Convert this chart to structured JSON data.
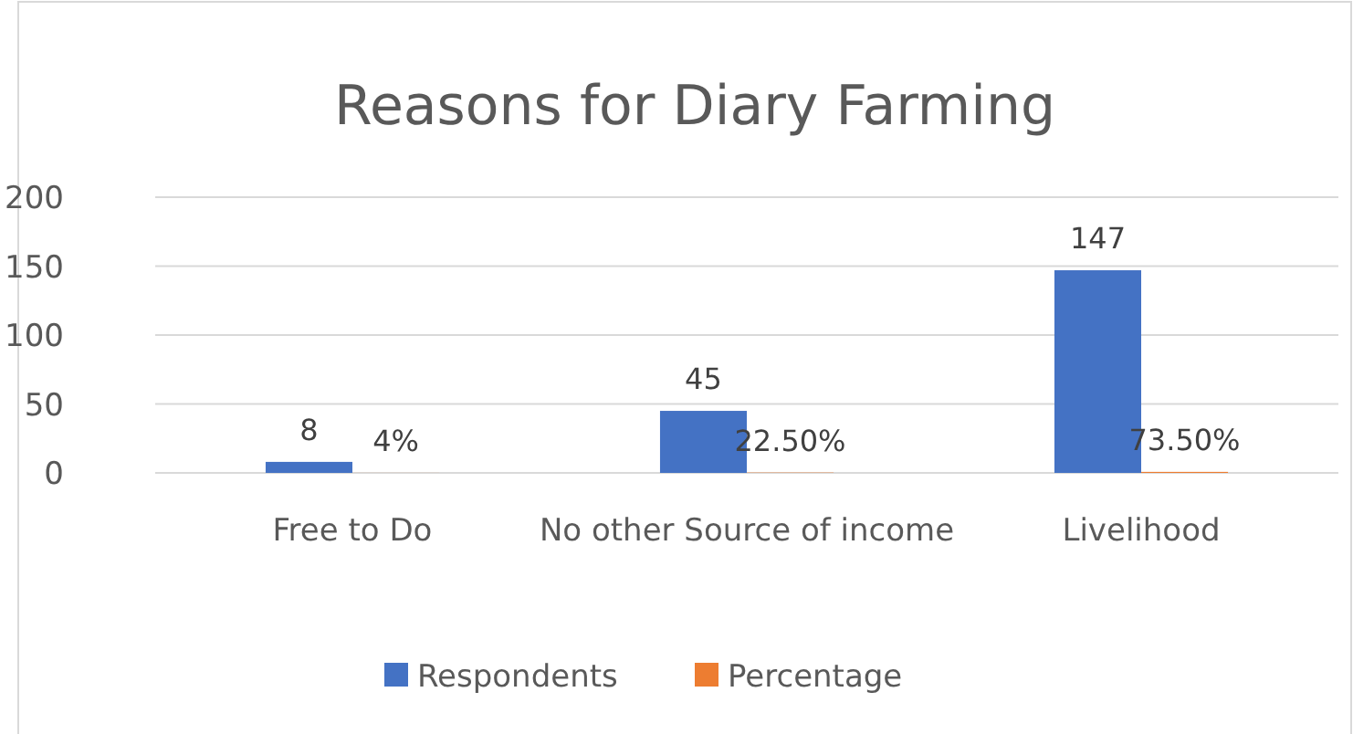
{
  "chart_data": {
    "type": "bar",
    "title": "Reasons for Diary Farming",
    "categories": [
      "Free to Do",
      "No other Source of income",
      "Livelihood"
    ],
    "series": [
      {
        "name": "Respondents",
        "color": "#4472c4",
        "values": [
          8,
          45,
          147
        ],
        "value_labels": [
          "8",
          "45",
          "147"
        ]
      },
      {
        "name": "Percentage",
        "color": "#ed7d31",
        "values": [
          0.04,
          0.225,
          0.735
        ],
        "value_labels": [
          "4%",
          "22.50%",
          "73.50%"
        ]
      }
    ],
    "ylim": [
      0,
      200
    ],
    "yticks": [
      0,
      50,
      100,
      150,
      200
    ],
    "grid": "y",
    "legend": "bottom"
  }
}
